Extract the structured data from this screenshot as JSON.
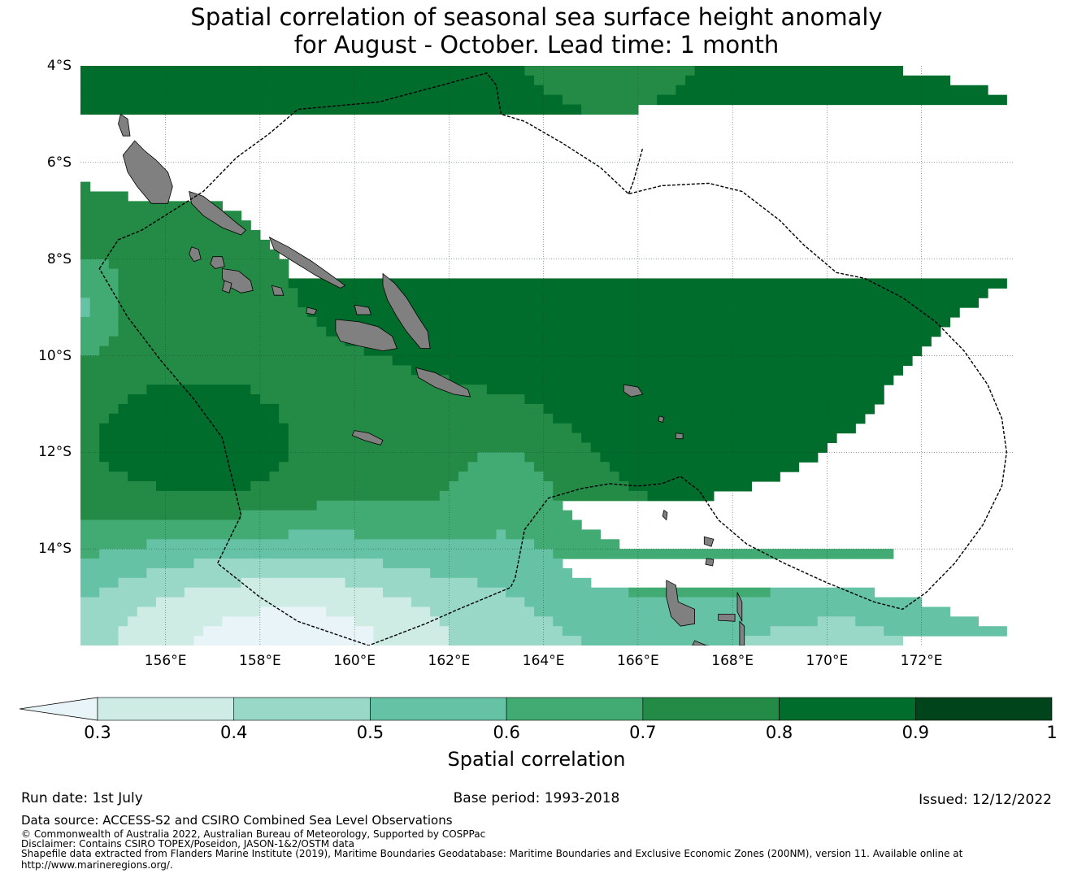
{
  "title": {
    "line1": "Spatial correlation of seasonal sea surface height anomaly",
    "line2": "for August - October. Lead time: 1 month"
  },
  "map": {
    "extent": {
      "lon_min": 154.2,
      "lon_max": 173.95,
      "lat_min": -16,
      "lat_max": -4
    },
    "lat_ticks": [
      {
        "value": -4,
        "label": "4°S"
      },
      {
        "value": -6,
        "label": "6°S"
      },
      {
        "value": -8,
        "label": "8°S"
      },
      {
        "value": -10,
        "label": "10°S"
      },
      {
        "value": -12,
        "label": "12°S"
      },
      {
        "value": -14,
        "label": "14°S"
      }
    ],
    "lon_ticks": [
      {
        "value": 156,
        "label": "156°E"
      },
      {
        "value": 158,
        "label": "158°E"
      },
      {
        "value": 160,
        "label": "160°E"
      },
      {
        "value": 162,
        "label": "162°E"
      },
      {
        "value": 164,
        "label": "164°E"
      },
      {
        "value": 166,
        "label": "166°E"
      },
      {
        "value": 168,
        "label": "168°E"
      },
      {
        "value": 170,
        "label": "170°E"
      },
      {
        "value": 172,
        "label": "172°E"
      }
    ],
    "eez_boundaries": [
      {
        "name": "solomon-islands-eez",
        "coords": [
          [
            154.6,
            -8.2
          ],
          [
            155.0,
            -7.6
          ],
          [
            155.5,
            -7.4
          ],
          [
            156.8,
            -6.6
          ],
          [
            157.5,
            -5.9
          ],
          [
            158.2,
            -5.4
          ],
          [
            158.8,
            -4.9
          ],
          [
            160.5,
            -4.75
          ],
          [
            162.8,
            -4.15
          ],
          [
            163.0,
            -4.4
          ],
          [
            163.1,
            -5.0
          ],
          [
            163.6,
            -5.15
          ],
          [
            164.4,
            -5.6
          ],
          [
            165.2,
            -6.1
          ],
          [
            165.8,
            -6.65
          ],
          [
            166.5,
            -6.48
          ],
          [
            167.5,
            -6.43
          ],
          [
            168.2,
            -6.6
          ],
          [
            169.0,
            -7.2
          ],
          [
            169.5,
            -7.7
          ],
          [
            170.2,
            -8.28
          ],
          [
            170.8,
            -8.4
          ],
          [
            171.6,
            -8.8
          ],
          [
            172.3,
            -9.3
          ],
          [
            172.9,
            -9.9
          ],
          [
            173.4,
            -10.6
          ],
          [
            173.7,
            -11.3
          ],
          [
            173.8,
            -12.0
          ],
          [
            173.7,
            -12.7
          ],
          [
            173.3,
            -13.5
          ],
          [
            172.7,
            -14.3
          ],
          [
            172.1,
            -14.9
          ],
          [
            171.6,
            -15.25
          ],
          [
            171.0,
            -15.1
          ],
          [
            170.0,
            -14.7
          ],
          [
            169.1,
            -14.3
          ],
          [
            168.3,
            -13.9
          ],
          [
            167.7,
            -13.4
          ],
          [
            167.3,
            -12.8
          ],
          [
            166.9,
            -12.5
          ],
          [
            166.5,
            -12.65
          ],
          [
            166.0,
            -12.7
          ],
          [
            165.4,
            -12.65
          ],
          [
            164.8,
            -12.75
          ],
          [
            164.1,
            -12.95
          ],
          [
            163.6,
            -13.6
          ],
          [
            163.4,
            -14.6
          ],
          [
            163.3,
            -14.8
          ],
          [
            162.2,
            -15.25
          ],
          [
            161.5,
            -15.55
          ],
          [
            160.3,
            -16.0
          ],
          [
            159.4,
            -15.7
          ],
          [
            158.8,
            -15.5
          ],
          [
            158.0,
            -15.0
          ],
          [
            157.1,
            -14.3
          ],
          [
            157.6,
            -13.3
          ],
          [
            157.4,
            -12.5
          ],
          [
            157.2,
            -11.7
          ],
          [
            156.6,
            -10.9
          ],
          [
            155.9,
            -10.1
          ],
          [
            155.2,
            -9.2
          ]
        ]
      },
      {
        "name": "east-eez-boundary",
        "coords": [
          [
            165.8,
            -6.65
          ],
          [
            165.9,
            -6.4
          ],
          [
            166.1,
            -5.7
          ]
        ]
      }
    ],
    "islands": [
      {
        "name": "bougainville",
        "coords": [
          [
            155.35,
            -5.55
          ],
          [
            155.55,
            -5.75
          ],
          [
            155.8,
            -5.95
          ],
          [
            156.05,
            -6.2
          ],
          [
            156.15,
            -6.5
          ],
          [
            156.05,
            -6.85
          ],
          [
            155.7,
            -6.85
          ],
          [
            155.4,
            -6.5
          ],
          [
            155.2,
            -6.2
          ],
          [
            155.1,
            -5.85
          ]
        ]
      },
      {
        "name": "buka",
        "coords": [
          [
            155.05,
            -5.0
          ],
          [
            155.2,
            -5.1
          ],
          [
            155.25,
            -5.45
          ],
          [
            155.1,
            -5.45
          ],
          [
            155.0,
            -5.2
          ]
        ]
      },
      {
        "name": "choiseul",
        "coords": [
          [
            156.5,
            -6.6
          ],
          [
            156.8,
            -6.7
          ],
          [
            157.2,
            -7.0
          ],
          [
            157.5,
            -7.25
          ],
          [
            157.7,
            -7.4
          ],
          [
            157.6,
            -7.5
          ],
          [
            157.2,
            -7.35
          ],
          [
            156.8,
            -7.1
          ],
          [
            156.55,
            -6.85
          ]
        ]
      },
      {
        "name": "santa-isabel",
        "coords": [
          [
            158.2,
            -7.55
          ],
          [
            158.6,
            -7.75
          ],
          [
            159.1,
            -8.05
          ],
          [
            159.6,
            -8.4
          ],
          [
            159.8,
            -8.55
          ],
          [
            159.7,
            -8.6
          ],
          [
            159.2,
            -8.35
          ],
          [
            158.7,
            -8.05
          ],
          [
            158.3,
            -7.8
          ]
        ]
      },
      {
        "name": "new-georgia",
        "coords": [
          [
            157.2,
            -8.2
          ],
          [
            157.55,
            -8.25
          ],
          [
            157.8,
            -8.45
          ],
          [
            157.85,
            -8.65
          ],
          [
            157.6,
            -8.7
          ],
          [
            157.3,
            -8.55
          ],
          [
            157.2,
            -8.4
          ]
        ]
      },
      {
        "name": "vella-lavella",
        "coords": [
          [
            156.55,
            -7.75
          ],
          [
            156.7,
            -7.8
          ],
          [
            156.75,
            -8.0
          ],
          [
            156.6,
            -8.05
          ],
          [
            156.5,
            -7.9
          ]
        ]
      },
      {
        "name": "rendova",
        "coords": [
          [
            157.25,
            -8.45
          ],
          [
            157.4,
            -8.5
          ],
          [
            157.35,
            -8.7
          ],
          [
            157.2,
            -8.65
          ]
        ]
      },
      {
        "name": "kolombangara",
        "coords": [
          [
            157.0,
            -7.95
          ],
          [
            157.2,
            -7.95
          ],
          [
            157.25,
            -8.15
          ],
          [
            157.05,
            -8.2
          ],
          [
            156.95,
            -8.1
          ]
        ]
      },
      {
        "name": "vangunu",
        "coords": [
          [
            158.25,
            -8.55
          ],
          [
            158.45,
            -8.6
          ],
          [
            158.5,
            -8.75
          ],
          [
            158.3,
            -8.75
          ]
        ]
      },
      {
        "name": "malaita",
        "coords": [
          [
            160.6,
            -8.3
          ],
          [
            160.85,
            -8.5
          ],
          [
            161.1,
            -8.8
          ],
          [
            161.35,
            -9.2
          ],
          [
            161.55,
            -9.5
          ],
          [
            161.6,
            -9.85
          ],
          [
            161.4,
            -9.85
          ],
          [
            161.1,
            -9.5
          ],
          [
            160.9,
            -9.2
          ],
          [
            160.7,
            -8.85
          ],
          [
            160.6,
            -8.55
          ]
        ]
      },
      {
        "name": "guadalcanal",
        "coords": [
          [
            159.6,
            -9.25
          ],
          [
            160.1,
            -9.3
          ],
          [
            160.5,
            -9.4
          ],
          [
            160.8,
            -9.6
          ],
          [
            160.9,
            -9.85
          ],
          [
            160.6,
            -9.9
          ],
          [
            160.1,
            -9.8
          ],
          [
            159.7,
            -9.7
          ],
          [
            159.6,
            -9.5
          ]
        ]
      },
      {
        "name": "nggela",
        "coords": [
          [
            160.0,
            -8.95
          ],
          [
            160.3,
            -9.0
          ],
          [
            160.35,
            -9.15
          ],
          [
            160.05,
            -9.15
          ]
        ]
      },
      {
        "name": "russell-islands",
        "coords": [
          [
            159.0,
            -9.0
          ],
          [
            159.2,
            -9.05
          ],
          [
            159.15,
            -9.15
          ],
          [
            158.98,
            -9.12
          ]
        ]
      },
      {
        "name": "makira",
        "coords": [
          [
            161.3,
            -10.25
          ],
          [
            161.7,
            -10.35
          ],
          [
            162.1,
            -10.55
          ],
          [
            162.4,
            -10.7
          ],
          [
            162.45,
            -10.85
          ],
          [
            162.1,
            -10.8
          ],
          [
            161.7,
            -10.65
          ],
          [
            161.35,
            -10.45
          ]
        ]
      },
      {
        "name": "rennell",
        "coords": [
          [
            160.0,
            -11.55
          ],
          [
            160.3,
            -11.6
          ],
          [
            160.6,
            -11.75
          ],
          [
            160.55,
            -11.85
          ],
          [
            160.2,
            -11.75
          ],
          [
            159.95,
            -11.65
          ]
        ]
      },
      {
        "name": "nendo",
        "coords": [
          [
            165.7,
            -10.6
          ],
          [
            166.0,
            -10.65
          ],
          [
            166.1,
            -10.8
          ],
          [
            165.85,
            -10.85
          ],
          [
            165.7,
            -10.75
          ]
        ]
      },
      {
        "name": "vanikoro",
        "coords": [
          [
            166.8,
            -11.6
          ],
          [
            166.95,
            -11.62
          ],
          [
            166.95,
            -11.72
          ],
          [
            166.8,
            -11.72
          ]
        ]
      },
      {
        "name": "utupua",
        "coords": [
          [
            166.45,
            -11.25
          ],
          [
            166.55,
            -11.28
          ],
          [
            166.52,
            -11.38
          ],
          [
            166.43,
            -11.35
          ]
        ]
      },
      {
        "name": "espiritu-santo",
        "coords": [
          [
            166.6,
            -14.65
          ],
          [
            166.8,
            -14.75
          ],
          [
            166.85,
            -15.1
          ],
          [
            167.2,
            -15.25
          ],
          [
            167.2,
            -15.55
          ],
          [
            166.9,
            -15.6
          ],
          [
            166.7,
            -15.4
          ],
          [
            166.6,
            -15.0
          ]
        ]
      },
      {
        "name": "malekula",
        "coords": [
          [
            167.2,
            -15.9
          ],
          [
            167.45,
            -16.0
          ],
          [
            167.5,
            -16.0
          ],
          [
            167.15,
            -16.0
          ]
        ]
      },
      {
        "name": "maewo",
        "coords": [
          [
            168.1,
            -14.9
          ],
          [
            168.2,
            -15.1
          ],
          [
            168.2,
            -15.5
          ],
          [
            168.1,
            -15.3
          ]
        ]
      },
      {
        "name": "ambae",
        "coords": [
          [
            167.7,
            -15.35
          ],
          [
            168.05,
            -15.35
          ],
          [
            168.05,
            -15.5
          ],
          [
            167.7,
            -15.48
          ]
        ]
      },
      {
        "name": "pentecost",
        "coords": [
          [
            168.15,
            -15.5
          ],
          [
            168.25,
            -15.6
          ],
          [
            168.25,
            -16.0
          ],
          [
            168.15,
            -16.0
          ]
        ]
      },
      {
        "name": "vanua-lava",
        "coords": [
          [
            167.4,
            -13.75
          ],
          [
            167.6,
            -13.8
          ],
          [
            167.55,
            -13.95
          ],
          [
            167.4,
            -13.9
          ]
        ]
      },
      {
        "name": "gaua",
        "coords": [
          [
            167.45,
            -14.2
          ],
          [
            167.6,
            -14.22
          ],
          [
            167.58,
            -14.35
          ],
          [
            167.43,
            -14.32
          ]
        ]
      },
      {
        "name": "torres-islands",
        "coords": [
          [
            166.55,
            -13.2
          ],
          [
            166.62,
            -13.25
          ],
          [
            166.6,
            -13.4
          ],
          [
            166.52,
            -13.32
          ]
        ]
      }
    ]
  },
  "colorbar": {
    "title": "Spatial correlation",
    "extend_color": "#e8f4f8",
    "bins": [
      {
        "low": 0.3,
        "high": 0.4,
        "color": "#ceece4"
      },
      {
        "low": 0.4,
        "high": 0.5,
        "color": "#99d8c7"
      },
      {
        "low": 0.5,
        "high": 0.6,
        "color": "#66c2a4"
      },
      {
        "low": 0.6,
        "high": 0.7,
        "color": "#41ab73"
      },
      {
        "low": 0.7,
        "high": 0.8,
        "color": "#238b45"
      },
      {
        "low": 0.8,
        "high": 0.9,
        "color": "#006d2c"
      },
      {
        "low": 0.9,
        "high": 1.0,
        "color": "#00441b"
      }
    ],
    "tick_labels": [
      "0.3",
      "0.4",
      "0.5",
      "0.6",
      "0.7",
      "0.8",
      "0.9",
      "1"
    ]
  },
  "meta": {
    "run_date": "Run date: 1st July",
    "base_period": "Base period: 1993-2018",
    "issued": "Issued: 12/12/2022"
  },
  "footer": {
    "source": "Data source: ACCESS-S2 and CSIRO Combined Sea Level Observations",
    "copyright": "© Commonwealth of Australia 2022, Australian Bureau of Meteorology, Supported by COSPPac",
    "disclaimer": "Disclaimer: Contains CSIRO TOPEX/Poseidon, JASON-1&2/OSTM data",
    "shapefile": "Shapefile data extracted from Flanders Marine Institute (2019), Maritime Boundaries Geodatabase: Maritime Boundaries and Exclusive Economic Zones (200NM), version 11. Available online at",
    "url": "http://www.marineregions.org/."
  }
}
